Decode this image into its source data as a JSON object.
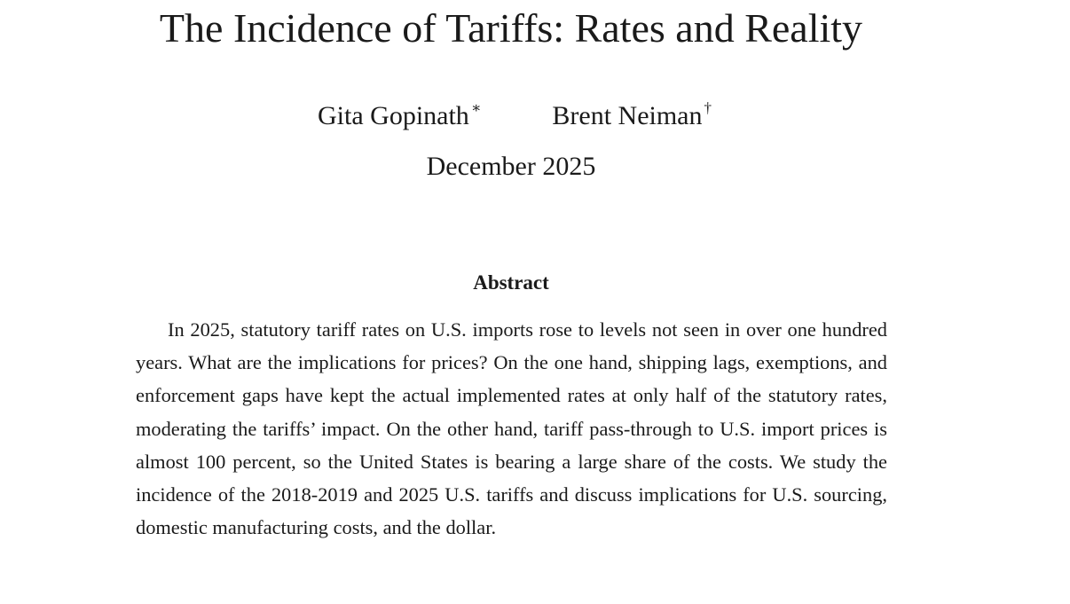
{
  "paper": {
    "title": "The Incidence of Tariffs: Rates and Reality",
    "authors": [
      {
        "name": "Gita Gopinath",
        "mark": "∗"
      },
      {
        "name": "Brent Neiman",
        "mark": "†"
      }
    ],
    "date": "December 2025",
    "abstract": {
      "heading": "Abstract",
      "text": "In 2025, statutory tariff rates on U.S. imports rose to levels not seen in over one hundred years. What are the implications for prices? On the one hand, shipping lags, exemptions, and enforcement gaps have kept the actual implemented rates at only half of the statutory rates, moderating the tariffs’ impact. On the other hand, tariff pass-through to U.S. import prices is almost 100 percent, so the United States is bearing a large share of the costs. We study the incidence of the 2018-2019 and 2025 U.S. tariffs and discuss implications for U.S. sourcing, domestic manufacturing costs, and the dollar."
    }
  }
}
